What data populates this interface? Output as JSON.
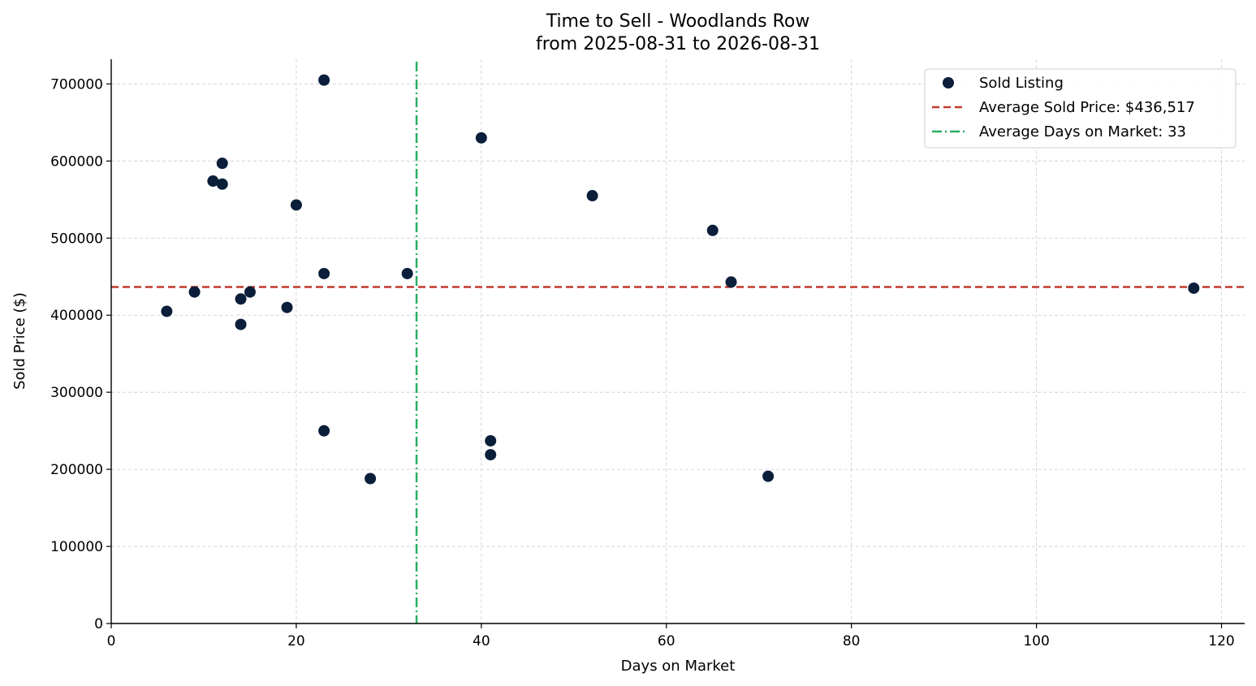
{
  "chart_data": {
    "type": "scatter",
    "title": "Time to Sell - Woodlands Row",
    "subtitle": "from 2025-08-31 to 2026-08-31",
    "xlabel": "Days on Market",
    "ylabel": "Sold Price ($)",
    "xlim": [
      0,
      122.5
    ],
    "ylim": [
      0,
      732000
    ],
    "xticks": [
      0,
      20,
      40,
      60,
      80,
      100,
      120
    ],
    "xtick_labels": [
      "0",
      "20",
      "40",
      "60",
      "80",
      "100",
      "120"
    ],
    "yticks": [
      0,
      100000,
      200000,
      300000,
      400000,
      500000,
      600000,
      700000
    ],
    "ytick_labels": [
      "0",
      "100000",
      "200000",
      "300000",
      "400000",
      "500000",
      "600000",
      "700000"
    ],
    "grid": true,
    "legend_position": "top-right",
    "series": [
      {
        "name": "Sold Listing",
        "color": "#0b1e3a",
        "x": [
          6,
          9,
          11,
          12,
          12,
          14,
          14,
          15,
          19,
          20,
          23,
          23,
          23,
          28,
          32,
          40,
          41,
          41,
          52,
          65,
          67,
          71,
          117
        ],
        "y": [
          405000,
          430000,
          574000,
          597000,
          570000,
          421000,
          388000,
          430000,
          410000,
          543000,
          705000,
          454000,
          250000,
          188000,
          454000,
          630000,
          237000,
          219000,
          555000,
          510000,
          443000,
          191000,
          435000
        ]
      }
    ],
    "reference_lines": [
      {
        "orientation": "horizontal",
        "value": 436517,
        "label": "Average Sold Price: $436,517",
        "color": "#c0392b",
        "style": "dashed"
      },
      {
        "orientation": "vertical",
        "value": 33,
        "label": "Average Days on Market: 33",
        "color": "#27ae60",
        "style": "dashdot"
      }
    ]
  }
}
